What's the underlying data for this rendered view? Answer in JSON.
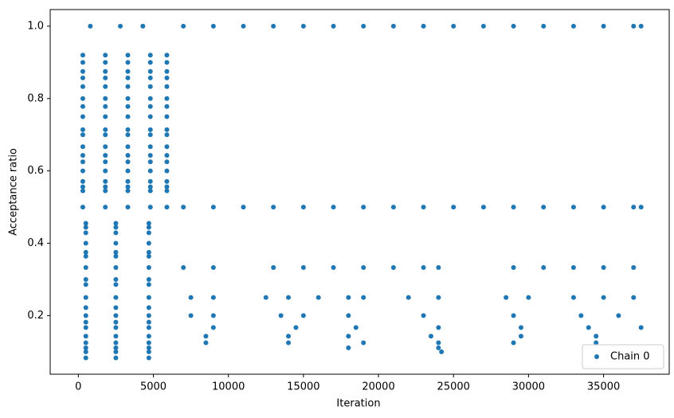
{
  "chart_data": {
    "type": "scatter",
    "xlabel": "Iteration",
    "ylabel": "Acceptance ratio",
    "xlim": [
      -1875,
      39375
    ],
    "ylim": [
      0.038,
      1.046
    ],
    "xticks": [
      0,
      5000,
      10000,
      15000,
      20000,
      25000,
      30000,
      35000
    ],
    "yticks": [
      0.2,
      0.4,
      0.6,
      0.8,
      {
        "value": 1,
        "label": "1.0"
      }
    ],
    "grid": false,
    "legend": "lower right",
    "series": [
      {
        "name": "Chain 0",
        "color": "#1f77b4",
        "x": [
          300,
          1800,
          3300,
          4800,
          5900,
          300,
          1800,
          3300,
          4800,
          5900,
          300,
          1800,
          3300,
          4800,
          5900,
          300,
          1800,
          3300,
          4800,
          5900,
          300,
          1800,
          3300,
          4800,
          5900,
          300,
          1800,
          3300,
          4800,
          5900,
          300,
          1800,
          3300,
          4800,
          5900,
          300,
          1800,
          3300,
          4800,
          5900,
          300,
          1800,
          3300,
          4800,
          5900,
          300,
          1800,
          3300,
          4800,
          5900,
          300,
          1800,
          3300,
          4800,
          5900,
          300,
          1800,
          3300,
          4800,
          5900,
          300,
          1800,
          3300,
          4800,
          5900,
          300,
          1800,
          3300,
          4800,
          5900,
          300,
          1800,
          3300,
          4800,
          5900,
          300,
          1800,
          3300,
          4800,
          5900,
          300,
          1800,
          3300,
          4800,
          5900,
          300,
          1800,
          3300,
          4800,
          5900,
          500,
          2500,
          4700,
          500,
          2500,
          4700,
          500,
          2500,
          4700,
          500,
          2500,
          4700,
          500,
          2500,
          4700,
          500,
          2500,
          4700,
          500,
          2500,
          4700,
          500,
          2500,
          4700,
          500,
          2500,
          4700,
          500,
          2500,
          4700,
          500,
          2500,
          4700,
          500,
          2500,
          4700,
          500,
          2500,
          4700,
          500,
          2500,
          4700,
          500,
          2500,
          4700,
          500,
          2500,
          4700,
          500,
          2500,
          4700,
          500,
          2500,
          4700,
          500,
          2500,
          4700,
          800,
          2800,
          4300,
          7000,
          9000,
          11000,
          13000,
          15000,
          17000,
          19000,
          21000,
          23000,
          25000,
          27000,
          29000,
          31000,
          33000,
          35000,
          37000,
          37500,
          7000,
          9000,
          11000,
          13000,
          15000,
          17000,
          19000,
          21000,
          23000,
          25000,
          27000,
          29000,
          31000,
          33000,
          35000,
          37000,
          37500,
          7000,
          9000,
          13000,
          15000,
          17000,
          19000,
          21000,
          23000,
          24000,
          29000,
          31000,
          33000,
          35000,
          37000,
          7500,
          9000,
          12500,
          14000,
          16000,
          18000,
          19000,
          22000,
          24000,
          28500,
          30000,
          33000,
          35000,
          37000,
          7500,
          9000,
          13500,
          15000,
          18000,
          23000,
          29000,
          33500,
          36000,
          9000,
          14500,
          18500,
          24000,
          29500,
          34000,
          37500,
          8500,
          14000,
          18000,
          23500,
          29500,
          34500,
          8500,
          14000,
          19000,
          24000,
          29000,
          34500,
          18000,
          24000,
          24200
        ],
        "values": [
          0.92,
          0.92,
          0.92,
          0.92,
          0.92,
          0.9,
          0.9,
          0.9,
          0.9,
          0.9,
          0.875,
          0.875,
          0.875,
          0.875,
          0.875,
          0.857,
          0.857,
          0.857,
          0.857,
          0.857,
          0.833,
          0.833,
          0.833,
          0.833,
          0.833,
          0.8,
          0.8,
          0.8,
          0.8,
          0.8,
          0.778,
          0.778,
          0.778,
          0.778,
          0.778,
          0.75,
          0.75,
          0.75,
          0.75,
          0.75,
          0.714,
          0.714,
          0.714,
          0.714,
          0.714,
          0.7,
          0.7,
          0.7,
          0.7,
          0.7,
          0.667,
          0.667,
          0.667,
          0.667,
          0.667,
          0.643,
          0.643,
          0.643,
          0.643,
          0.643,
          0.625,
          0.625,
          0.625,
          0.625,
          0.625,
          0.6,
          0.6,
          0.6,
          0.6,
          0.6,
          0.571,
          0.571,
          0.571,
          0.571,
          0.571,
          0.556,
          0.556,
          0.556,
          0.556,
          0.556,
          0.545,
          0.545,
          0.545,
          0.545,
          0.545,
          0.5,
          0.5,
          0.5,
          0.5,
          0.5,
          0.455,
          0.455,
          0.455,
          0.444,
          0.444,
          0.444,
          0.429,
          0.429,
          0.429,
          0.4,
          0.4,
          0.4,
          0.375,
          0.375,
          0.375,
          0.364,
          0.364,
          0.364,
          0.333,
          0.333,
          0.333,
          0.3,
          0.3,
          0.3,
          0.286,
          0.286,
          0.286,
          0.25,
          0.25,
          0.25,
          0.222,
          0.222,
          0.222,
          0.2,
          0.2,
          0.2,
          0.182,
          0.182,
          0.182,
          0.167,
          0.167,
          0.167,
          0.143,
          0.143,
          0.143,
          0.125,
          0.125,
          0.125,
          0.111,
          0.111,
          0.111,
          0.1,
          0.1,
          0.1,
          0.083,
          0.083,
          0.083,
          1,
          1,
          1,
          1,
          1,
          1,
          1,
          1,
          1,
          1,
          1,
          1,
          1,
          1,
          1,
          1,
          1,
          1,
          1,
          1,
          0.5,
          0.5,
          0.5,
          0.5,
          0.5,
          0.5,
          0.5,
          0.5,
          0.5,
          0.5,
          0.5,
          0.5,
          0.5,
          0.5,
          0.5,
          0.5,
          0.5,
          0.333,
          0.333,
          0.333,
          0.333,
          0.333,
          0.333,
          0.333,
          0.333,
          0.333,
          0.333,
          0.333,
          0.333,
          0.333,
          0.333,
          0.25,
          0.25,
          0.25,
          0.25,
          0.25,
          0.25,
          0.25,
          0.25,
          0.25,
          0.25,
          0.25,
          0.25,
          0.25,
          0.25,
          0.2,
          0.2,
          0.2,
          0.2,
          0.2,
          0.2,
          0.2,
          0.2,
          0.2,
          0.167,
          0.167,
          0.167,
          0.167,
          0.167,
          0.167,
          0.167,
          0.143,
          0.143,
          0.143,
          0.143,
          0.143,
          0.143,
          0.125,
          0.125,
          0.125,
          0.125,
          0.125,
          0.125,
          0.111,
          0.111,
          0.1
        ]
      }
    ]
  }
}
